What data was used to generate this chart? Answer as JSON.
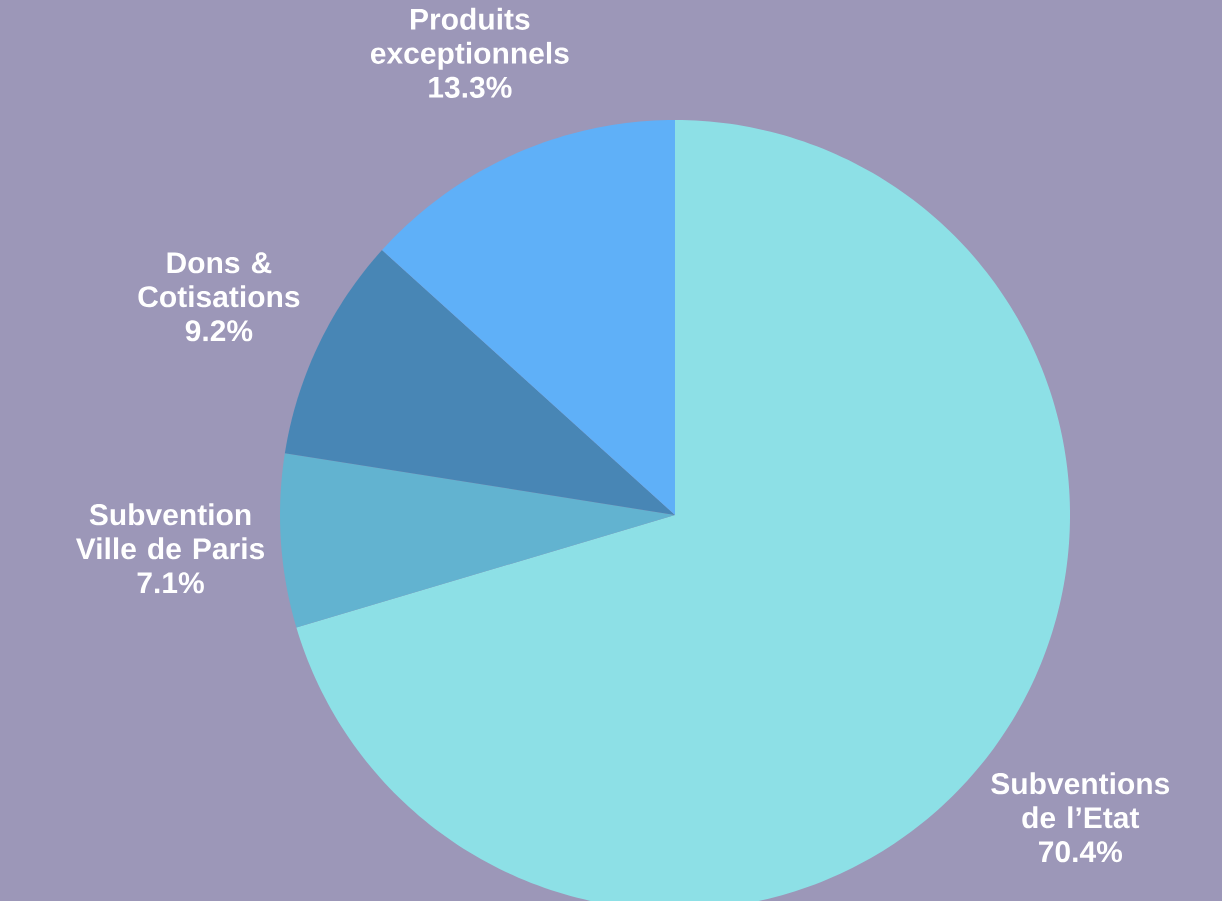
{
  "chart_data": {
    "type": "pie",
    "categories": [
      "Subventions de l’Etat",
      "Subvention Ville de Paris",
      "Dons & Cotisations",
      "Produits exceptionnels"
    ],
    "values": [
      70.4,
      7.1,
      9.2,
      13.3
    ],
    "colors": [
      "#8de0e6",
      "#62b3d0",
      "#4886b5",
      "#5fb0f8"
    ],
    "value_labels": [
      "70.4%",
      "7.1%",
      "9.2%",
      "13.3%"
    ]
  }
}
